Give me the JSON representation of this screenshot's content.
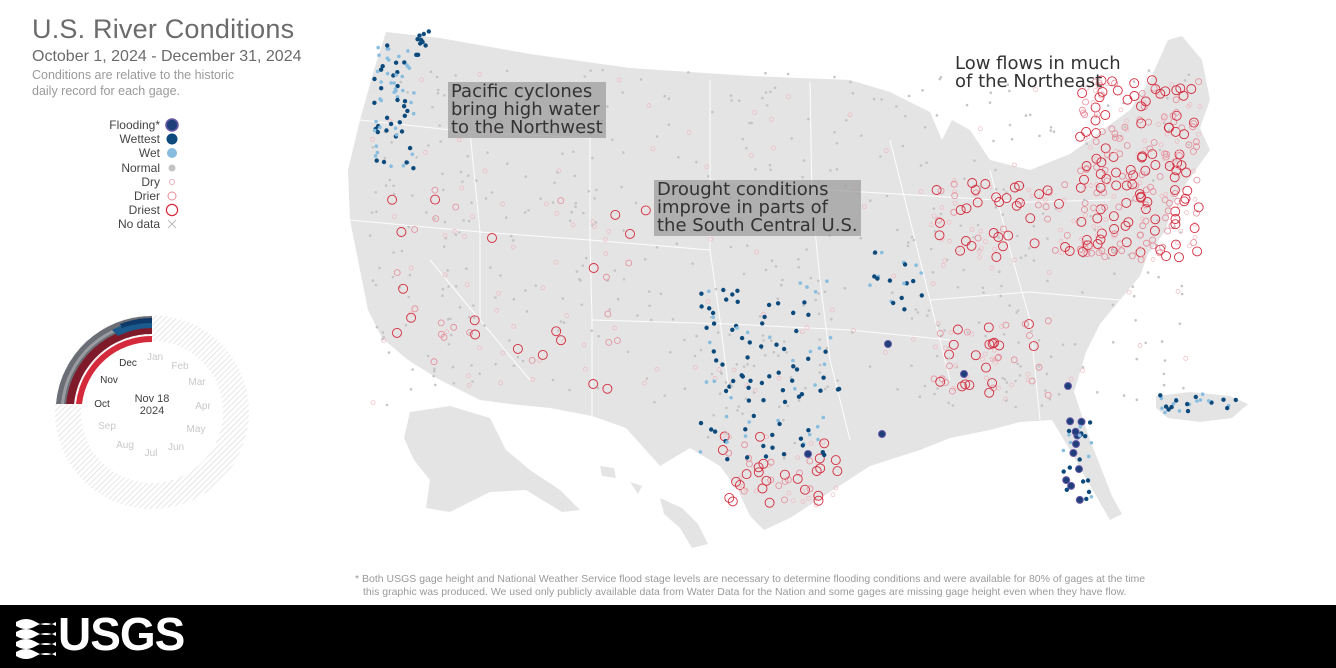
{
  "header": {
    "title": "U.S. River Conditions",
    "subtitle": "October 1, 2024 - December 31, 2024",
    "note_line1": "Conditions are relative to the historic",
    "note_line2": "daily record for each gage."
  },
  "legend": {
    "items": [
      {
        "label": "Flooding*",
        "symbol": "flooding",
        "color": "#1f3f7a"
      },
      {
        "label": "Wettest",
        "symbol": "wettest",
        "color": "#0d4a7c"
      },
      {
        "label": "Wet",
        "symbol": "wet",
        "color": "#88bde0"
      },
      {
        "label": "Normal",
        "symbol": "normal",
        "color": "#c4c4c4"
      },
      {
        "label": "Dry",
        "symbol": "dry",
        "color": "#f0b8c0"
      },
      {
        "label": "Drier",
        "symbol": "drier",
        "color": "#e58a98"
      },
      {
        "label": "Driest",
        "symbol": "driest",
        "color": "#d42a3c"
      },
      {
        "label": "No data",
        "symbol": "nodata",
        "color": "#bbbbbb"
      }
    ]
  },
  "callouts": {
    "northwest": [
      "Pacific cyclones",
      "bring high water",
      "to the Northwest"
    ],
    "south_central": [
      "Drought conditions",
      "improve in parts of",
      "the South Central U.S."
    ],
    "northeast": [
      "Low flows in much",
      "of the Northeast"
    ]
  },
  "ring_chart": {
    "date_line1": "Nov 18",
    "date_line2": "2024",
    "months": [
      "Jan",
      "Feb",
      "Mar",
      "Apr",
      "May",
      "Jun",
      "Jul",
      "Aug",
      "Sep",
      "Oct",
      "Nov",
      "Dec"
    ],
    "active_months": [
      "Oct",
      "Nov",
      "Dec"
    ]
  },
  "footnote": {
    "line1": "* Both USGS gage height and National Weather Service flood stage levels are necessary to determine flooding conditions and were available for 80% of gages at the time",
    "line2": "this graphic was produced. We used only publicly available data from Water Data for the Nation and some gages are missing gage height even when they have flow."
  },
  "footer": {
    "logo_text": "USGS"
  },
  "colors": {
    "land": "#e4e4e4",
    "state_border": "#ffffff",
    "flooding": "#1f3f7a",
    "wettest": "#0d4a7c",
    "wet": "#88bde0",
    "normal": "#c4c4c4",
    "dry": "#f0b8c0",
    "drier": "#e58a98",
    "driest": "#d42a3c"
  }
}
